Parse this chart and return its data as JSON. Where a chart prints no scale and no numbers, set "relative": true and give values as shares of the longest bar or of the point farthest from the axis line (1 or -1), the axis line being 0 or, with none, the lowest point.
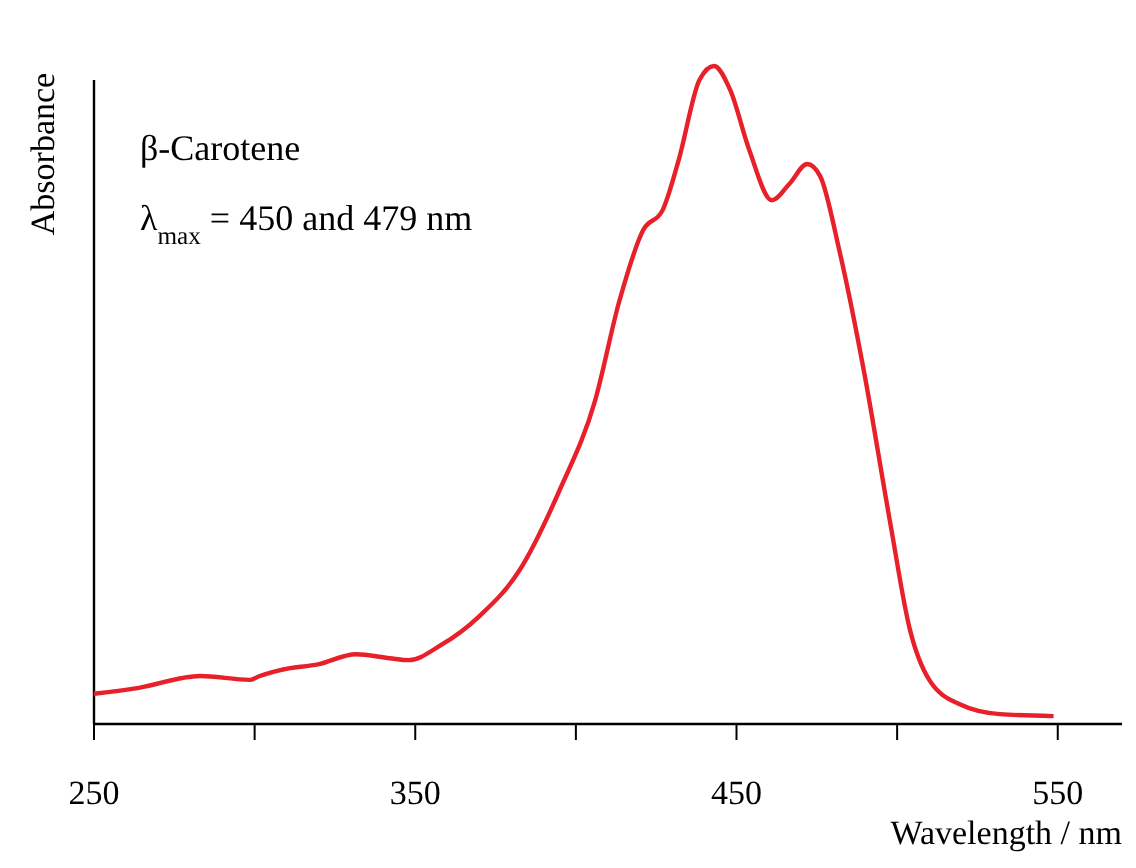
{
  "chart_data": {
    "type": "line",
    "relative": true,
    "xlabel": "Wavelength / nm",
    "ylabel": "Absorbance",
    "annotations": [
      "β-Carotene",
      "λ$_{max}$ = 450 and 479 nm"
    ],
    "xlim": [
      250,
      570
    ],
    "xticks": [
      250,
      {
        "value": 300,
        "label": null
      },
      350,
      {
        "value": 400,
        "label": null
      },
      450,
      {
        "value": 500,
        "label": null
      },
      550
    ],
    "line_style": "solid",
    "series": [
      {
        "color": "#e8202a",
        "x": [
          250,
          264,
          283,
          298.5,
          301.6,
          308,
          320,
          331.5,
          342,
          348,
          357.7,
          370,
          382.5,
          395,
          406,
          413.6,
          421,
          427,
          432,
          438.5,
          443,
          448,
          454,
          461,
          466.5,
          472,
          476,
          482,
          489.6,
          497.7,
          504,
          510,
          519.5,
          532,
          548.7
        ],
        "values": [
          0.046,
          0.055,
          0.073,
          0.067,
          0.073,
          0.082,
          0.091,
          0.106,
          0.1,
          0.097,
          0.119,
          0.164,
          0.234,
          0.356,
          0.492,
          0.644,
          0.751,
          0.781,
          0.857,
          0.979,
          1,
          0.964,
          0.872,
          0.796,
          0.821,
          0.851,
          0.833,
          0.72,
          0.538,
          0.31,
          0.143,
          0.067,
          0.03,
          0.015,
          0.012
        ]
      }
    ]
  }
}
